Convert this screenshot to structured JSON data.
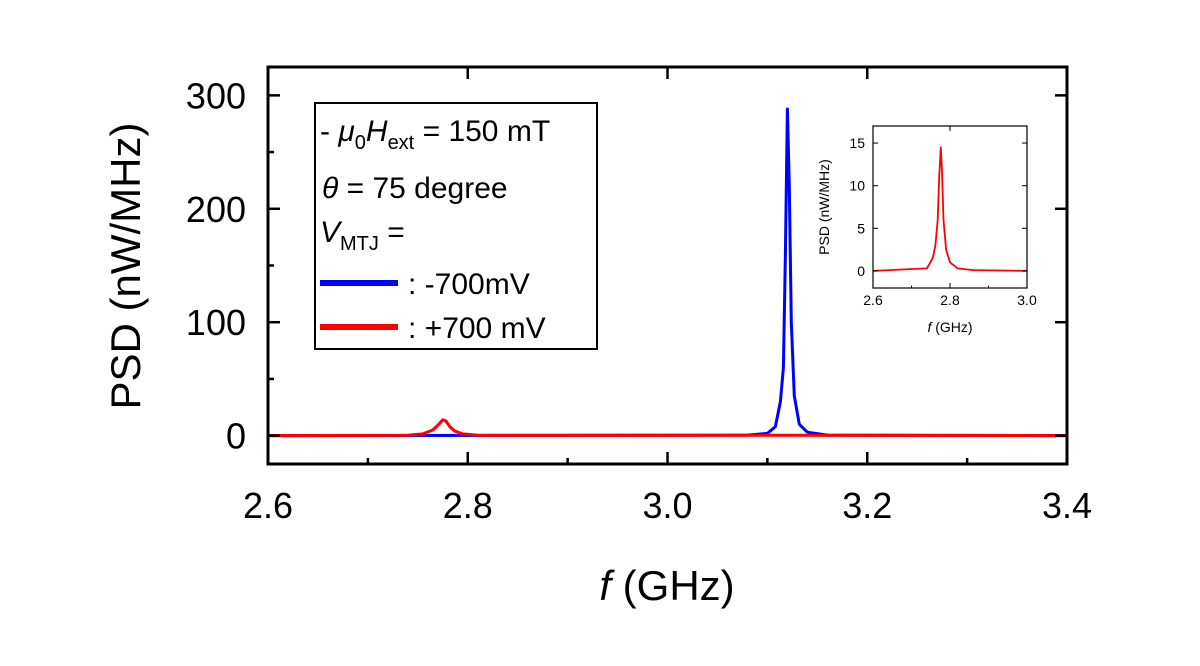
{
  "chart_data": [
    {
      "type": "line",
      "title": "",
      "xlabel_italic": "f",
      "xlabel_rest": " (GHz)",
      "ylabel": "PSD (nW/MHz)",
      "xlim": [
        2.6,
        3.4
      ],
      "ylim": [
        -25,
        325
      ],
      "x_ticks": [
        2.6,
        2.8,
        3.0,
        3.2,
        3.4
      ],
      "x_tick_labels": [
        "2.6",
        "2.8",
        "3.0",
        "3.2",
        "3.4"
      ],
      "y_ticks": [
        0,
        100,
        200,
        300
      ],
      "y_tick_labels": [
        "0",
        "100",
        "200",
        "300"
      ],
      "grid": false,
      "legend": {
        "placement": "top-left",
        "line1": {
          "prefix": "- ",
          "mu": "μ",
          "mu_sub": "0",
          "H": "H",
          "H_sub": "ext",
          "rest": " = 150 mT"
        },
        "line2": {
          "theta": "θ",
          "rest": " = 75 degree"
        },
        "line3": {
          "V": "V",
          "V_sub": "MTJ",
          "rest": " ="
        }
      },
      "series": [
        {
          "name": ": -700mV",
          "color": "#0000ff",
          "x": [
            2.6,
            3.08,
            3.1,
            3.108,
            3.113,
            3.116,
            3.118,
            3.12,
            3.122,
            3.124,
            3.127,
            3.132,
            3.14,
            3.16,
            3.4
          ],
          "y": [
            0,
            0.5,
            2,
            8,
            30,
            60,
            160,
            288,
            220,
            100,
            35,
            10,
            3,
            0.5,
            0
          ]
        },
        {
          "name": ": +700 mV",
          "color": "#ff0000",
          "x": [
            2.6,
            2.74,
            2.755,
            2.765,
            2.77,
            2.775,
            2.778,
            2.782,
            2.787,
            2.795,
            2.81,
            3.0,
            3.1,
            3.2,
            3.4
          ],
          "y": [
            0,
            0.3,
            1.5,
            5,
            9,
            14,
            13,
            8,
            4,
            1.5,
            0.3,
            0.2,
            0.4,
            0.2,
            0
          ]
        }
      ]
    },
    {
      "type": "line",
      "title": "",
      "xlabel_italic": "f",
      "xlabel_rest": " (GHz)",
      "ylabel": "PSD (nW/MHz)",
      "xlim": [
        2.6,
        3.0
      ],
      "ylim": [
        -2,
        17
      ],
      "x_ticks": [
        2.6,
        2.8,
        3.0
      ],
      "x_tick_labels": [
        "2.6",
        "2.8",
        "3.0"
      ],
      "y_ticks": [
        0,
        5,
        10,
        15
      ],
      "y_tick_labels": [
        "0",
        "5",
        "10",
        "15"
      ],
      "grid": false,
      "series": [
        {
          "color": "#ff0000",
          "x": [
            2.6,
            2.74,
            2.755,
            2.762,
            2.768,
            2.772,
            2.776,
            2.779,
            2.783,
            2.79,
            2.8,
            2.82,
            2.86,
            3.0
          ],
          "y": [
            0,
            0.3,
            1.5,
            3,
            6,
            11,
            14.5,
            12,
            6,
            2.5,
            1,
            0.3,
            0.1,
            0
          ]
        }
      ]
    }
  ]
}
